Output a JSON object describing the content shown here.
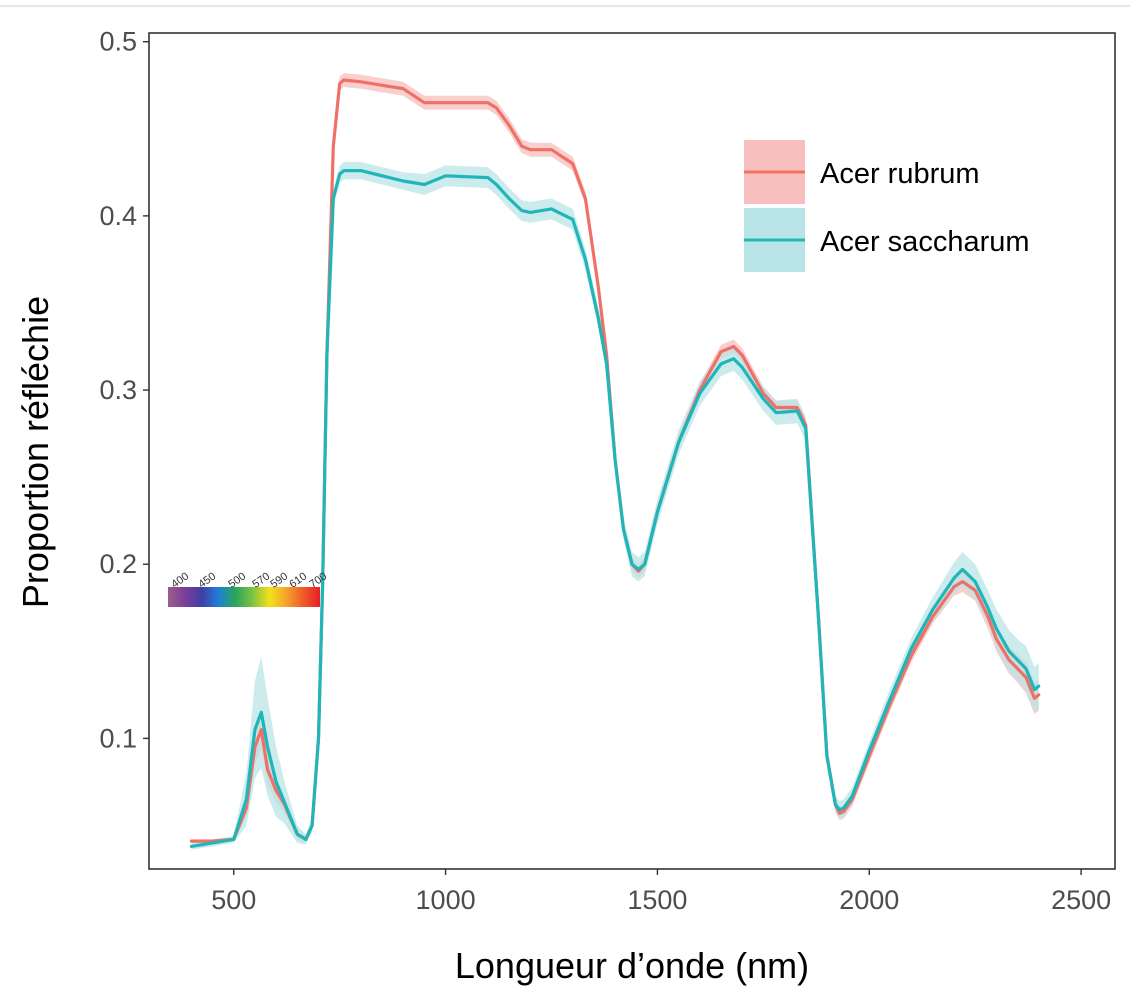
{
  "chart_data": {
    "type": "line",
    "title": "",
    "xlabel": "Longueur d’onde (nm)",
    "ylabel": "Proportion réfléchie",
    "xlim": [
      300,
      2580
    ],
    "ylim": [
      0.025,
      0.505
    ],
    "xticks": [
      500,
      1000,
      1500,
      2000,
      2500
    ],
    "yticks": [
      0.1,
      0.2,
      0.3,
      0.4,
      0.5
    ],
    "xtick_labels": [
      "500",
      "1000",
      "1500",
      "2000",
      "2500"
    ],
    "ytick_labels": [
      "0.1",
      "0.2",
      "0.3",
      "0.4",
      "0.5"
    ],
    "grid": false,
    "legend_position": "top-right",
    "series": [
      {
        "name": "Acer rubrum",
        "color": "#F07067",
        "band_color": "#F7BFBD",
        "x": [
          400,
          450,
          500,
          530,
          550,
          565,
          580,
          600,
          620,
          650,
          670,
          685,
          700,
          710,
          720,
          735,
          750,
          760,
          800,
          900,
          950,
          1000,
          1100,
          1120,
          1150,
          1180,
          1200,
          1250,
          1300,
          1330,
          1360,
          1380,
          1400,
          1420,
          1440,
          1455,
          1470,
          1500,
          1550,
          1600,
          1650,
          1680,
          1700,
          1750,
          1780,
          1830,
          1850,
          1880,
          1900,
          1920,
          1930,
          1940,
          1960,
          2000,
          2050,
          2100,
          2150,
          2200,
          2220,
          2250,
          2280,
          2300,
          2330,
          2350,
          2370,
          2390,
          2400
        ],
        "y": [
          0.041,
          0.041,
          0.042,
          0.06,
          0.095,
          0.105,
          0.082,
          0.07,
          0.062,
          0.045,
          0.042,
          0.05,
          0.1,
          0.19,
          0.32,
          0.44,
          0.476,
          0.478,
          0.477,
          0.473,
          0.465,
          0.465,
          0.465,
          0.462,
          0.452,
          0.44,
          0.438,
          0.438,
          0.43,
          0.41,
          0.36,
          0.32,
          0.26,
          0.22,
          0.2,
          0.196,
          0.2,
          0.23,
          0.27,
          0.3,
          0.322,
          0.325,
          0.32,
          0.298,
          0.29,
          0.29,
          0.28,
          0.17,
          0.09,
          0.062,
          0.057,
          0.058,
          0.065,
          0.09,
          0.12,
          0.148,
          0.17,
          0.187,
          0.19,
          0.185,
          0.17,
          0.157,
          0.145,
          0.14,
          0.135,
          0.123,
          0.125
        ],
        "band_halfwidth": [
          0.001,
          0.001,
          0.001,
          0.005,
          0.01,
          0.011,
          0.009,
          0.007,
          0.005,
          0.003,
          0.002,
          0.003,
          0.004,
          0.004,
          0.004,
          0.004,
          0.004,
          0.004,
          0.004,
          0.004,
          0.004,
          0.004,
          0.004,
          0.004,
          0.004,
          0.004,
          0.004,
          0.004,
          0.004,
          0.004,
          0.004,
          0.004,
          0.004,
          0.004,
          0.004,
          0.004,
          0.004,
          0.004,
          0.004,
          0.004,
          0.004,
          0.004,
          0.004,
          0.004,
          0.004,
          0.004,
          0.004,
          0.004,
          0.004,
          0.004,
          0.004,
          0.004,
          0.004,
          0.004,
          0.004,
          0.004,
          0.004,
          0.005,
          0.006,
          0.006,
          0.007,
          0.007,
          0.008,
          0.008,
          0.009,
          0.009,
          0.009
        ]
      },
      {
        "name": "Acer saccharum",
        "color": "#1FB6B9",
        "band_color": "#B9E4E5",
        "x": [
          400,
          450,
          500,
          530,
          550,
          565,
          580,
          600,
          620,
          650,
          670,
          685,
          700,
          710,
          720,
          735,
          750,
          760,
          800,
          900,
          950,
          1000,
          1100,
          1120,
          1150,
          1180,
          1200,
          1250,
          1300,
          1330,
          1360,
          1380,
          1400,
          1420,
          1440,
          1455,
          1470,
          1500,
          1550,
          1600,
          1650,
          1680,
          1700,
          1750,
          1780,
          1830,
          1850,
          1880,
          1900,
          1920,
          1930,
          1940,
          1960,
          2000,
          2050,
          2100,
          2150,
          2200,
          2220,
          2250,
          2280,
          2300,
          2330,
          2350,
          2370,
          2390,
          2400
        ],
        "y": [
          0.038,
          0.04,
          0.042,
          0.065,
          0.105,
          0.115,
          0.095,
          0.075,
          0.063,
          0.045,
          0.042,
          0.05,
          0.1,
          0.19,
          0.32,
          0.41,
          0.424,
          0.426,
          0.426,
          0.42,
          0.418,
          0.423,
          0.422,
          0.418,
          0.41,
          0.403,
          0.402,
          0.404,
          0.398,
          0.375,
          0.342,
          0.315,
          0.26,
          0.22,
          0.2,
          0.197,
          0.2,
          0.23,
          0.27,
          0.298,
          0.315,
          0.318,
          0.313,
          0.295,
          0.287,
          0.288,
          0.278,
          0.17,
          0.09,
          0.062,
          0.059,
          0.06,
          0.067,
          0.093,
          0.123,
          0.152,
          0.174,
          0.192,
          0.197,
          0.19,
          0.175,
          0.163,
          0.15,
          0.145,
          0.14,
          0.128,
          0.13
        ],
        "band_halfwidth": [
          0.002,
          0.002,
          0.002,
          0.015,
          0.028,
          0.032,
          0.028,
          0.02,
          0.012,
          0.005,
          0.003,
          0.004,
          0.005,
          0.005,
          0.005,
          0.005,
          0.005,
          0.005,
          0.005,
          0.005,
          0.006,
          0.006,
          0.006,
          0.006,
          0.006,
          0.006,
          0.006,
          0.006,
          0.006,
          0.006,
          0.006,
          0.006,
          0.006,
          0.006,
          0.007,
          0.007,
          0.007,
          0.007,
          0.007,
          0.007,
          0.007,
          0.007,
          0.007,
          0.007,
          0.007,
          0.007,
          0.007,
          0.006,
          0.005,
          0.005,
          0.005,
          0.005,
          0.005,
          0.005,
          0.006,
          0.006,
          0.007,
          0.009,
          0.01,
          0.01,
          0.01,
          0.011,
          0.012,
          0.012,
          0.013,
          0.013,
          0.013
        ]
      }
    ],
    "legend_entries": [
      "Acer rubrum",
      "Acer saccharum"
    ],
    "inset_spectrum": {
      "labels": [
        "400",
        "450",
        "500",
        "570",
        "590",
        "610",
        "700"
      ],
      "colors": [
        "#9B5E8E",
        "#7A3F97",
        "#3F3FA4",
        "#1F7FD6",
        "#2AA55A",
        "#7DC242",
        "#F2E21B",
        "#F6A22A",
        "#EF5B2A",
        "#E51F25"
      ]
    }
  }
}
